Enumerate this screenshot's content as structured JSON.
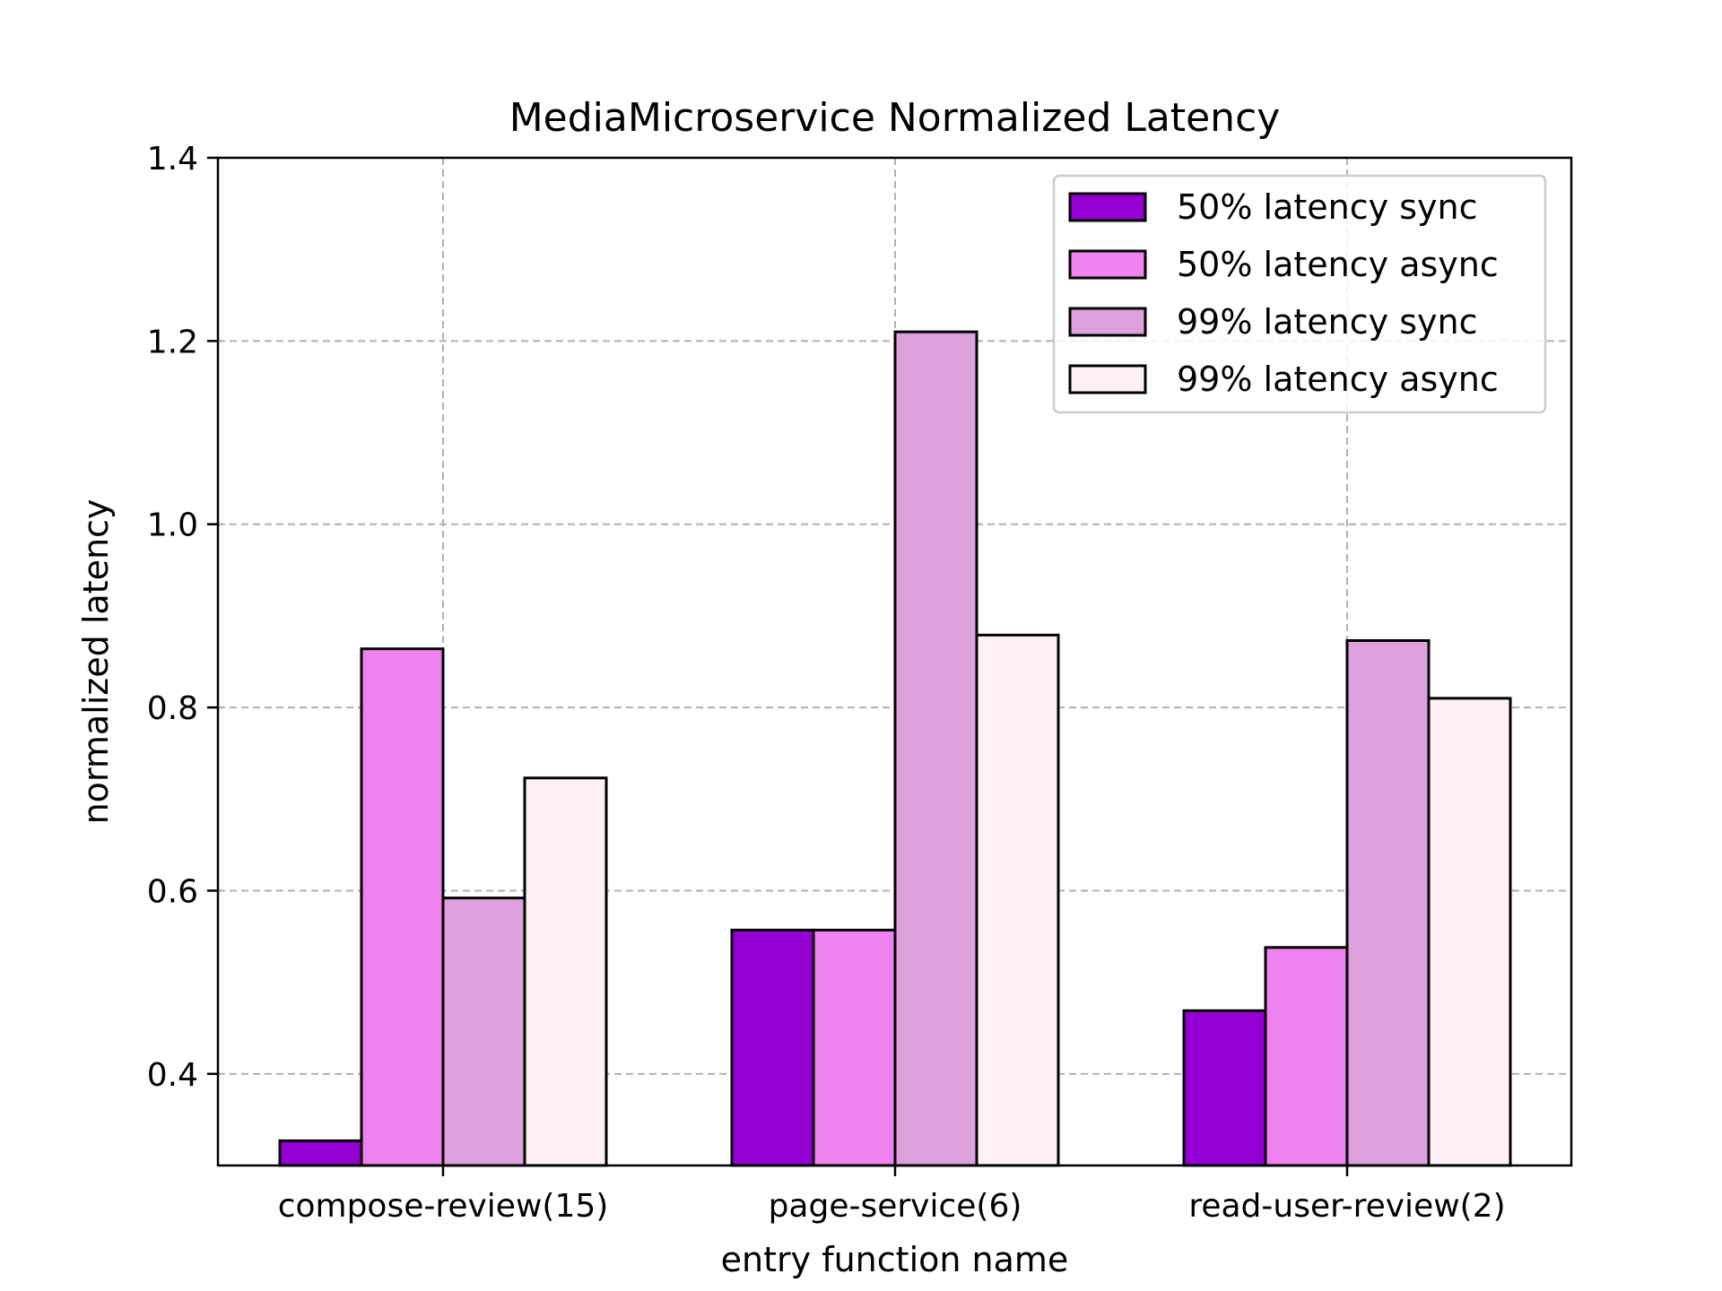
{
  "chart_data": {
    "type": "bar",
    "title": "MediaMicroservice Normalized Latency",
    "xlabel": "entry function name",
    "ylabel": "normalized latency",
    "categories": [
      "compose-review(15)",
      "page-service(6)",
      "read-user-review(2)"
    ],
    "series": [
      {
        "name": "50% latency sync",
        "color": "#9400D3",
        "values": [
          0.327,
          0.557,
          0.469
        ]
      },
      {
        "name": "50% latency async",
        "color": "#EE82EE",
        "values": [
          0.864,
          0.557,
          0.538
        ]
      },
      {
        "name": "99% latency sync",
        "color": "#DDA0DD",
        "values": [
          0.592,
          1.21,
          0.873
        ]
      },
      {
        "name": "99% latency async",
        "color": "#FFF0F5",
        "values": [
          0.723,
          0.879,
          0.81
        ]
      }
    ],
    "ylim": [
      0.3,
      1.4
    ],
    "yticks": [
      "0.4",
      "0.6",
      "0.8",
      "1.0",
      "1.2",
      "1.4"
    ],
    "grid": true,
    "legend_position": "top-right"
  }
}
